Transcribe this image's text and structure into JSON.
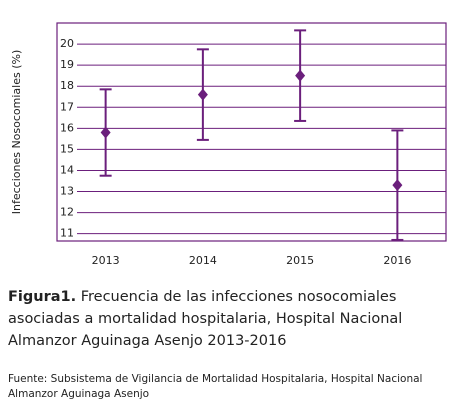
{
  "chart_data": {
    "type": "errorbar",
    "y_label": "Infecciones Nosocomiales (%)",
    "categories": [
      "2013",
      "2014",
      "2015",
      "2016"
    ],
    "series": [
      {
        "color": "#6b1f7c",
        "values": [
          15.8,
          17.6,
          18.5,
          13.3
        ],
        "errors": [
          2.05,
          2.15,
          2.15,
          2.6
        ]
      }
    ],
    "ylim": [
      10.65,
      21
    ],
    "yticks": [
      11,
      12,
      13,
      14,
      15,
      16,
      17,
      18,
      19,
      20
    ],
    "grid": true,
    "caption_label": "Figura1.",
    "caption": "Frecuencia de las infecciones nosocomiales asociadas a mortalidad hospitalaria, Hospital Nacional Almanzor Aguinaga Asenjo 2013-2016",
    "source": "Fuente: Subsistema de Vigilancia de Mortalidad Hospitalaria, Hospital Nacional Almanzor Aguinaga Asenjo"
  }
}
